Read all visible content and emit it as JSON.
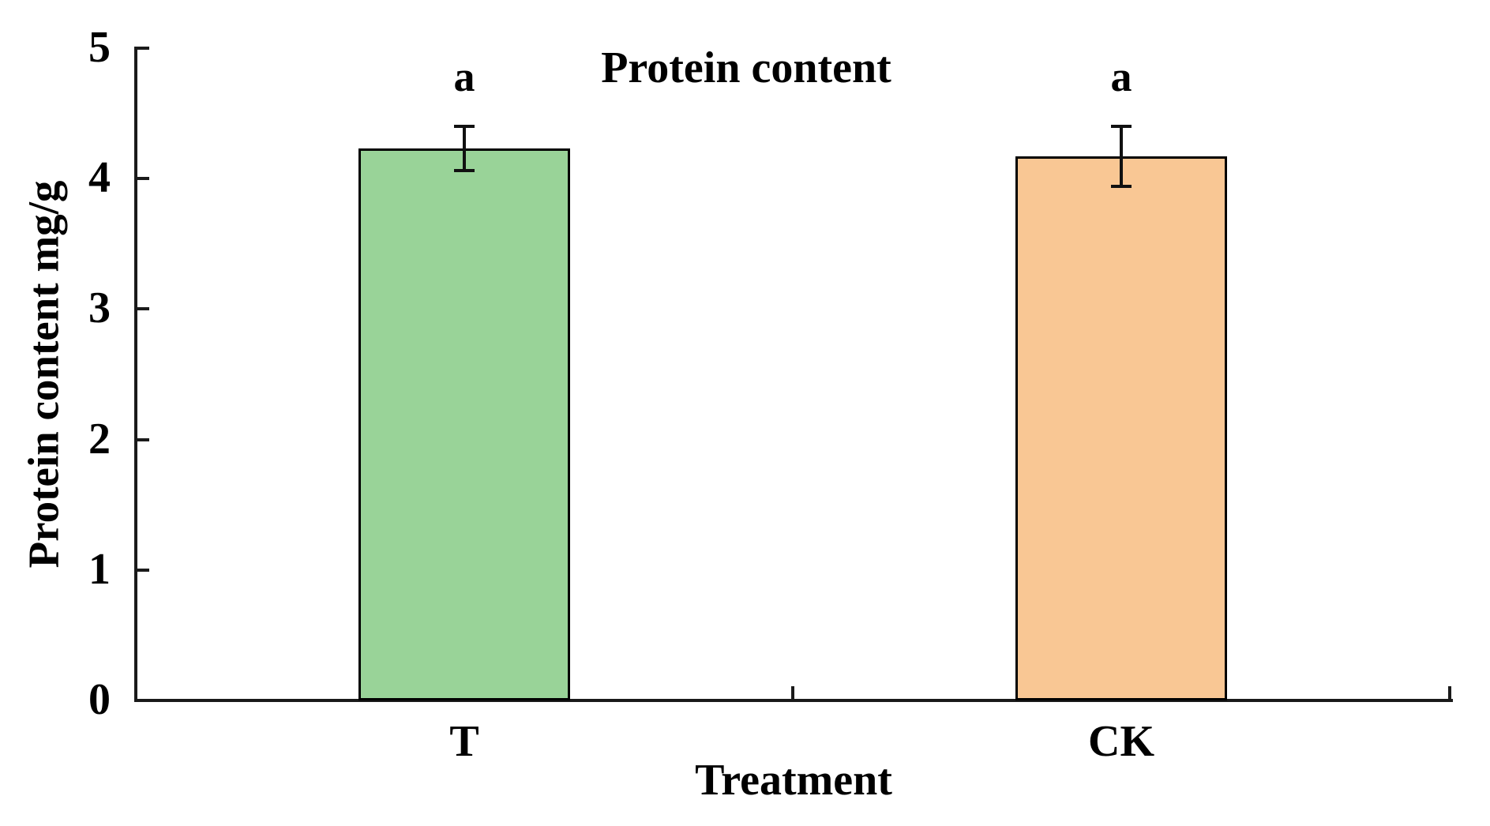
{
  "chart_data": {
    "type": "bar",
    "title": "Protein content",
    "xlabel": "Treatment",
    "ylabel": "Protein content mg/g",
    "categories": [
      "T",
      "CK"
    ],
    "values": [
      4.23,
      4.17
    ],
    "errors": [
      0.17,
      0.23
    ],
    "sig_letters": [
      "a",
      "a"
    ],
    "bar_colors": [
      "#99d398",
      "#f9c794"
    ],
    "bar_edge_color": "#000000",
    "ylim": [
      0,
      5
    ],
    "yticks": [
      "0",
      "1",
      "2",
      "3",
      "4",
      "5"
    ],
    "grid": false,
    "legend_position": "none",
    "colors": {
      "axis": "#1a1a1a",
      "text": "#000000",
      "background": "#ffffff"
    }
  }
}
